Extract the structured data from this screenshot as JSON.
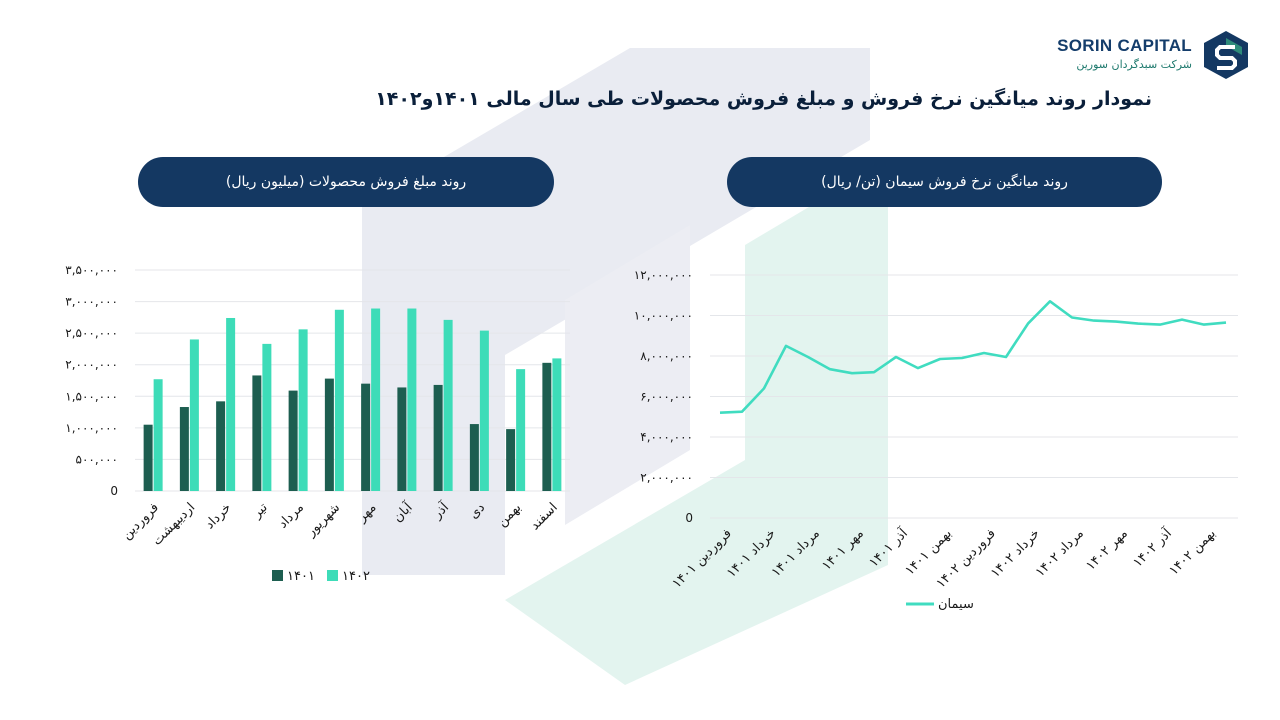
{
  "brand": {
    "name": "SORIN CAPITAL",
    "subtitle": "شرکت سبدگردان سورین",
    "colors": {
      "navy": "#143862",
      "teal": "#2e8b7a"
    }
  },
  "title": "نمودار روند میانگین نرخ فروش و مبلغ فروش محصولات طی سال مالی ۱۴۰۱و۱۴۰۲",
  "colors": {
    "dark_green": "#1d5e50",
    "mint": "#3ddcb8",
    "line": "#40dcc0"
  },
  "chart_data": [
    {
      "type": "bar",
      "title": "روند مبلغ فروش محصولات (میلیون ریال)",
      "categories": [
        "فروردین",
        "اردیبهشت",
        "خرداد",
        "تیر",
        "مرداد",
        "شهریور",
        "مهر",
        "آبان",
        "آذر",
        "دی",
        "بهمن",
        "اسفند"
      ],
      "series": [
        {
          "name": "۱۴۰۱",
          "values": [
            1050000,
            1330000,
            1420000,
            1830000,
            1590000,
            1780000,
            1700000,
            1640000,
            1680000,
            1060000,
            980000,
            2030000
          ]
        },
        {
          "name": "۱۴۰۲",
          "values": [
            1770000,
            2400000,
            2740000,
            2330000,
            2560000,
            2870000,
            2890000,
            2890000,
            2710000,
            2540000,
            1930000,
            2100000
          ]
        }
      ],
      "ylim": [
        0,
        3500000
      ],
      "yticks": [
        0,
        500000,
        1000000,
        1500000,
        2000000,
        2500000,
        3000000,
        3500000
      ],
      "ytick_labels": [
        "0",
        "۵۰۰,۰۰۰",
        "۱,۰۰۰,۰۰۰",
        "۱,۵۰۰,۰۰۰",
        "۲,۰۰۰,۰۰۰",
        "۲,۵۰۰,۰۰۰",
        "۳,۰۰۰,۰۰۰",
        "۳,۵۰۰,۰۰۰"
      ],
      "legend": "bottom",
      "grid": true
    },
    {
      "type": "line",
      "title": "روند میانگین نرخ فروش سیمان (تن/ ریال)",
      "x_labels": [
        "فروردین ۱۴۰۱",
        "خرداد ۱۴۰۱",
        "مرداد ۱۴۰۱",
        "مهر ۱۴۰۱",
        "آذر ۱۴۰۱",
        "بهمن ۱۴۰۱",
        "فروردین ۱۴۰۲",
        "خرداد ۱۴۰۲",
        "مرداد ۱۴۰۲",
        "مهر ۱۴۰۲",
        "آذر ۱۴۰۲",
        "بهمن ۱۴۰۲"
      ],
      "series": [
        {
          "name": "سیمان",
          "values": [
            5200000,
            5250000,
            6400000,
            8500000,
            7950000,
            7350000,
            7150000,
            7200000,
            7950000,
            7400000,
            7850000,
            7900000,
            8150000,
            7950000,
            9600000,
            10700000,
            9900000,
            9750000,
            9700000,
            9600000,
            9550000,
            9800000,
            9550000,
            9650000
          ]
        }
      ],
      "ylim": [
        0,
        12000000
      ],
      "yticks": [
        0,
        2000000,
        4000000,
        6000000,
        8000000,
        10000000,
        12000000
      ],
      "ytick_labels": [
        "0",
        "۲,۰۰۰,۰۰۰",
        "۴,۰۰۰,۰۰۰",
        "۶,۰۰۰,۰۰۰",
        "۸,۰۰۰,۰۰۰",
        "۱۰,۰۰۰,۰۰۰",
        "۱۲,۰۰۰,۰۰۰"
      ],
      "legend": "bottom",
      "grid": true
    }
  ]
}
